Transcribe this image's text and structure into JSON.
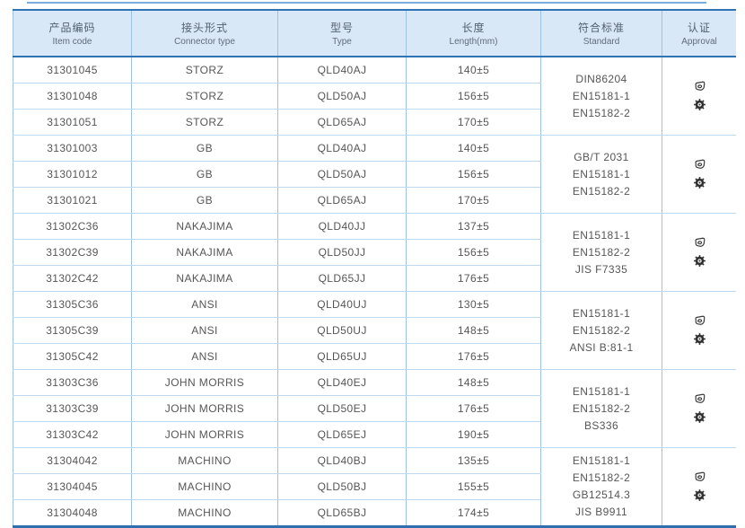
{
  "colors": {
    "header_bg": "#d9e8f7",
    "border_dark": "#2e74b5",
    "border_light_vertical": "#9cc3e5",
    "border_light_horizontal": "#bcd9f0",
    "text": "#565656"
  },
  "table": {
    "columns": [
      {
        "key": "item_code",
        "zh": "产品编码",
        "en": "Item code"
      },
      {
        "key": "connector_type",
        "zh": "接头形式",
        "en": "Connector type"
      },
      {
        "key": "type",
        "zh": "型号",
        "en": "Type"
      },
      {
        "key": "length",
        "zh": "长度",
        "en": "Length(mm)"
      },
      {
        "key": "standard",
        "zh": "符合标准",
        "en": "Standard"
      },
      {
        "key": "approval",
        "zh": "认证",
        "en": "Approval"
      }
    ],
    "groups": [
      {
        "connector_type": "STORZ",
        "rows": [
          {
            "item_code": "31301045",
            "type": "QLD40AJ",
            "length": "140±5"
          },
          {
            "item_code": "31301048",
            "type": "QLD50AJ",
            "length": "156±5"
          },
          {
            "item_code": "31301051",
            "type": "QLD65AJ",
            "length": "170±5"
          }
        ],
        "standards": [
          "DIN86204",
          "EN15181-1",
          "EN15182-2"
        ],
        "approval_icons": [
          "type-approval-logo",
          "wheelmark"
        ]
      },
      {
        "connector_type": "GB",
        "rows": [
          {
            "item_code": "31301003",
            "type": "QLD40AJ",
            "length": "140±5"
          },
          {
            "item_code": "31301012",
            "type": "QLD50AJ",
            "length": "156±5"
          },
          {
            "item_code": "31301021",
            "type": "QLD65AJ",
            "length": "170±5"
          }
        ],
        "standards": [
          "GB/T 2031",
          "EN15181-1",
          "EN15182-2"
        ],
        "approval_icons": [
          "type-approval-logo",
          "wheelmark"
        ]
      },
      {
        "connector_type": "NAKAJIMA",
        "rows": [
          {
            "item_code": "31302C36",
            "type": "QLD40JJ",
            "length": "137±5"
          },
          {
            "item_code": "31302C39",
            "type": "QLD50JJ",
            "length": "156±5"
          },
          {
            "item_code": "31302C42",
            "type": "QLD65JJ",
            "length": "176±5"
          }
        ],
        "standards": [
          "EN15181-1",
          "EN15182-2",
          "JIS F7335"
        ],
        "approval_icons": [
          "type-approval-logo",
          "wheelmark"
        ]
      },
      {
        "connector_type": "ANSI",
        "rows": [
          {
            "item_code": "31305C36",
            "type": "QLD40UJ",
            "length": "130±5"
          },
          {
            "item_code": "31305C39",
            "type": "QLD50UJ",
            "length": "148±5"
          },
          {
            "item_code": "31305C42",
            "type": "QLD65UJ",
            "length": "176±5"
          }
        ],
        "standards": [
          "EN15181-1",
          "EN15182-2",
          "ANSI B:81-1"
        ],
        "approval_icons": [
          "type-approval-logo",
          "wheelmark"
        ]
      },
      {
        "connector_type": "JOHN MORRIS",
        "rows": [
          {
            "item_code": "31303C36",
            "type": "QLD40EJ",
            "length": "148±5"
          },
          {
            "item_code": "31303C39",
            "type": "QLD50EJ",
            "length": "176±5"
          },
          {
            "item_code": "31303C42",
            "type": "QLD65EJ",
            "length": "190±5"
          }
        ],
        "standards": [
          "EN15181-1",
          "EN15182-2",
          "BS336"
        ],
        "approval_icons": [
          "type-approval-logo",
          "wheelmark"
        ]
      },
      {
        "connector_type": "MACHINO",
        "rows": [
          {
            "item_code": "31304042",
            "type": "QLD40BJ",
            "length": "135±5"
          },
          {
            "item_code": "31304045",
            "type": "QLD50BJ",
            "length": "155±5"
          },
          {
            "item_code": "31304048",
            "type": "QLD65BJ",
            "length": "174±5"
          }
        ],
        "standards": [
          "EN15181-1",
          "EN15182-2",
          "GB12514.3",
          "JIS B9911"
        ],
        "approval_icons": [
          "type-approval-logo",
          "wheelmark"
        ]
      }
    ]
  }
}
